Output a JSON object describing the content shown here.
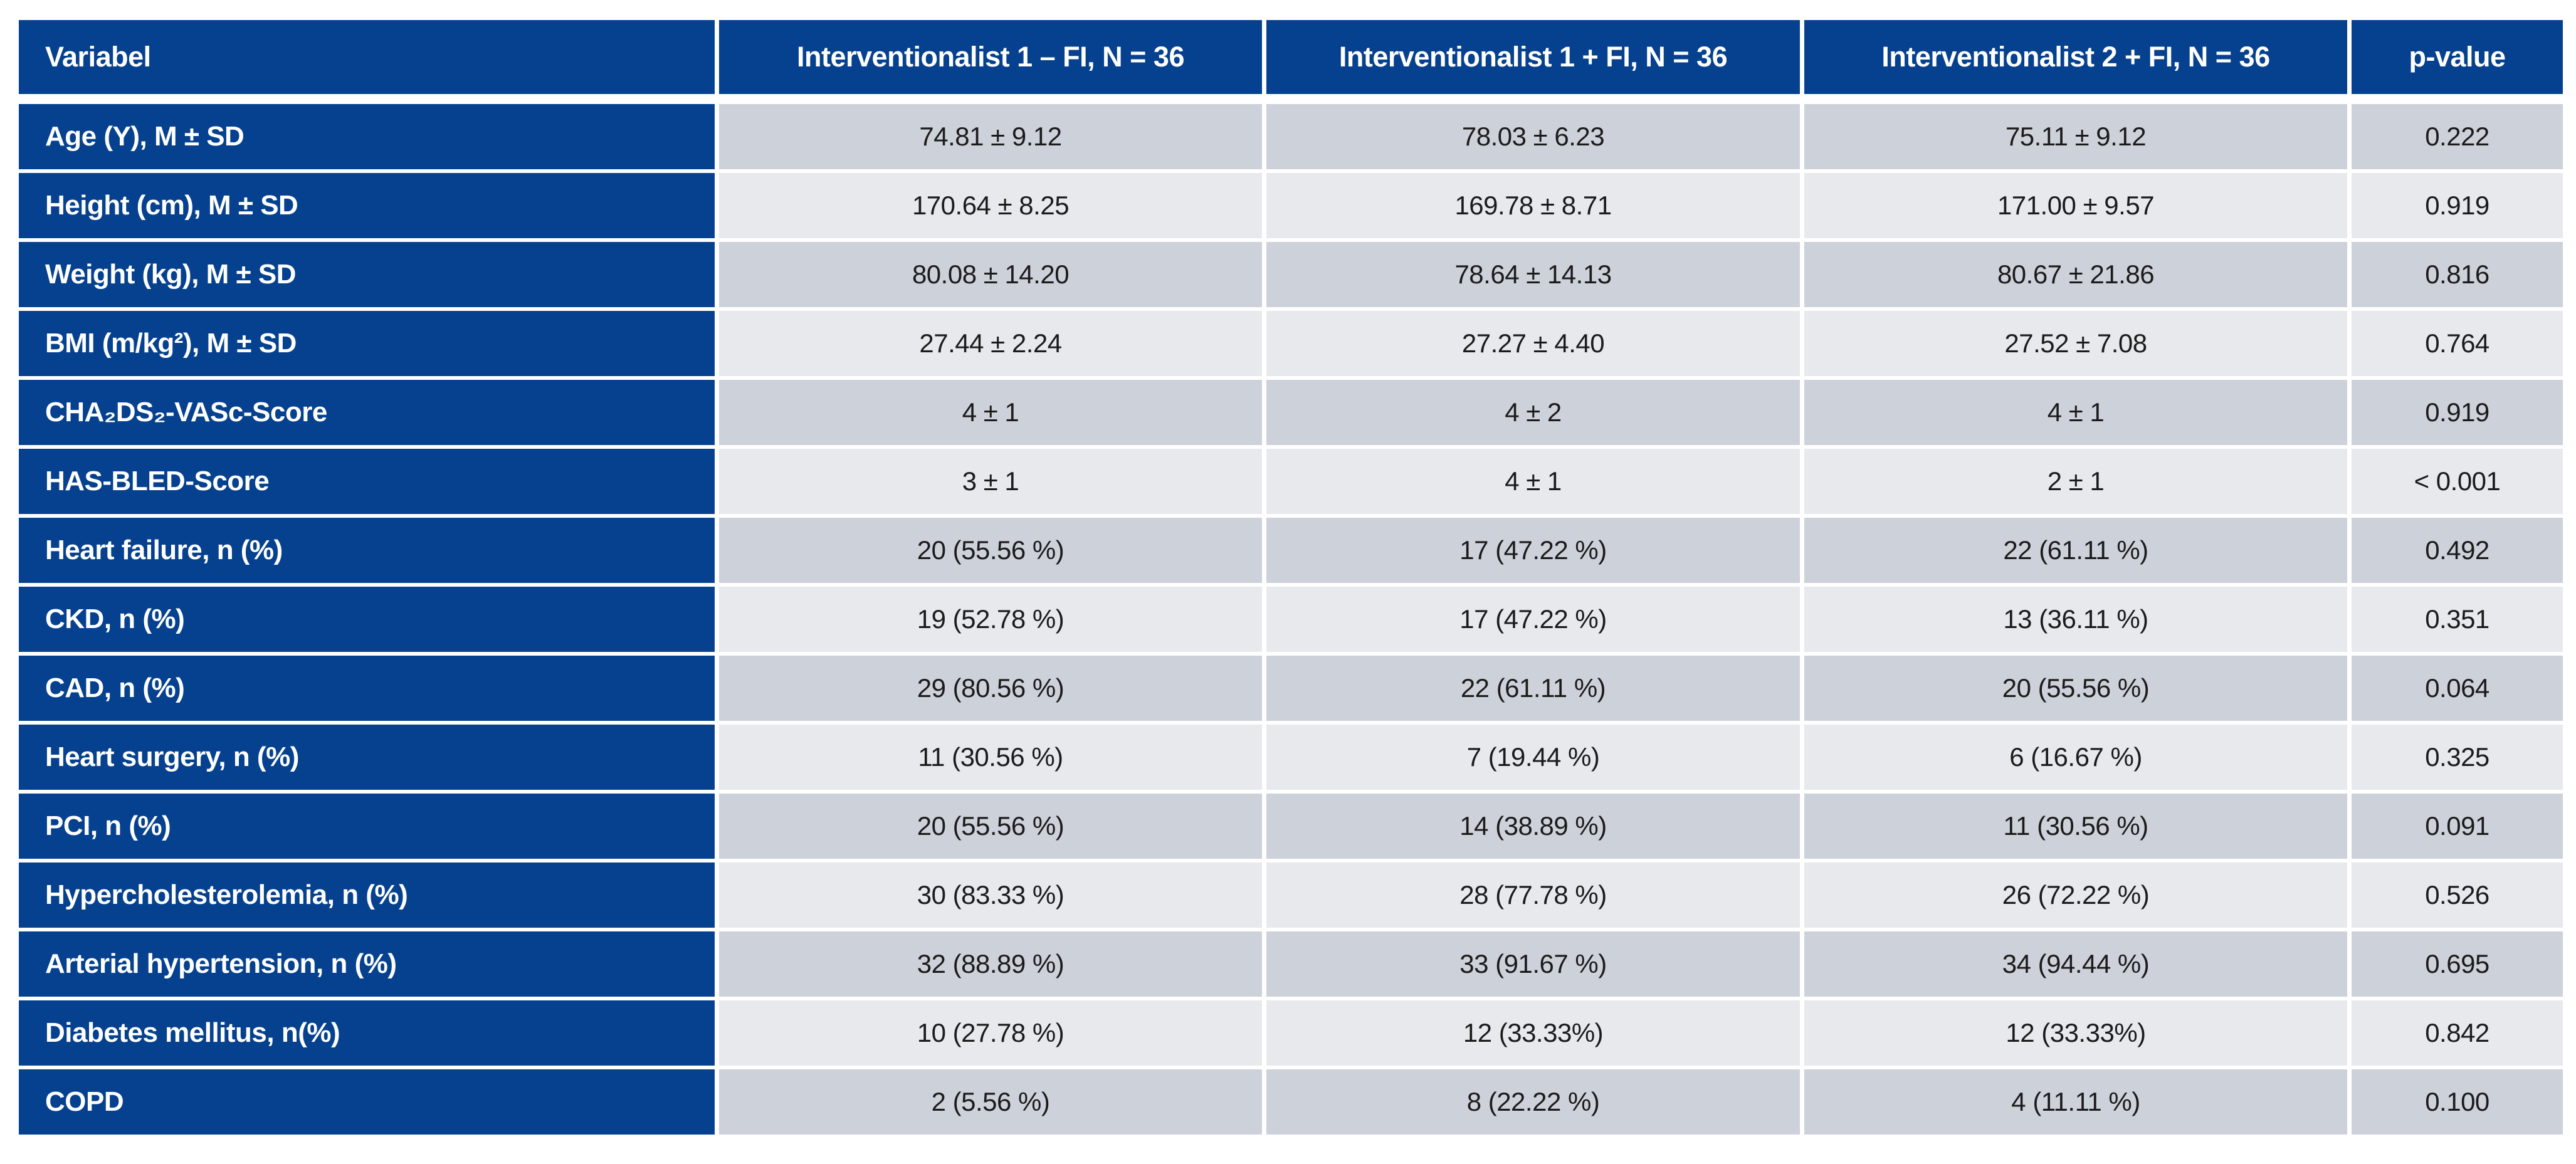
{
  "header": {
    "variabel": "Variabel",
    "col1": "Interventionalist 1 – FI, N = 36",
    "col2": "Interventionalist 1 + FI, N = 36",
    "col3": "Interventionalist 2 + FI, N = 36",
    "pvalue": "p-value"
  },
  "rows": [
    {
      "label": "Age (Y), M ± SD",
      "values": [
        "74.81 ± 9.12",
        "78.03 ± 6.23",
        "75.11 ± 9.12"
      ],
      "p": "0.222"
    },
    {
      "label": "Height (cm), M ± SD",
      "values": [
        "170.64 ± 8.25",
        "169.78 ± 8.71",
        "171.00 ± 9.57"
      ],
      "p": "0.919"
    },
    {
      "label": "Weight (kg), M ± SD",
      "values": [
        "80.08 ± 14.20",
        "78.64 ± 14.13",
        "80.67 ± 21.86"
      ],
      "p": "0.816"
    },
    {
      "label": "BMI (m/kg²), M ± SD",
      "values": [
        "27.44 ± 2.24",
        "27.27 ± 4.40",
        "27.52 ± 7.08"
      ],
      "p": "0.764"
    },
    {
      "label": "CHA₂DS₂-VASc-Score",
      "values": [
        "4 ± 1",
        "4 ± 2",
        "4 ± 1"
      ],
      "p": "0.919"
    },
    {
      "label": "HAS-BLED-Score",
      "values": [
        "3 ± 1",
        "4 ± 1",
        "2 ± 1"
      ],
      "p": "< 0.001"
    },
    {
      "label": "Heart failure, n (%)",
      "values": [
        "20 (55.56 %)",
        "17 (47.22 %)",
        "22 (61.11 %)"
      ],
      "p": "0.492"
    },
    {
      "label": "CKD, n (%)",
      "values": [
        "19 (52.78 %)",
        "17 (47.22 %)",
        "13 (36.11 %)"
      ],
      "p": "0.351"
    },
    {
      "label": "CAD, n (%)",
      "values": [
        "29 (80.56 %)",
        "22 (61.11 %)",
        "20 (55.56 %)"
      ],
      "p": "0.064"
    },
    {
      "label": "Heart surgery, n (%)",
      "values": [
        "11 (30.56 %)",
        "7 (19.44 %)",
        "6 (16.67 %)"
      ],
      "p": "0.325"
    },
    {
      "label": "PCI, n (%)",
      "values": [
        "20 (55.56 %)",
        "14 (38.89 %)",
        "11 (30.56 %)"
      ],
      "p": "0.091"
    },
    {
      "label": "Hypercholesterolemia, n (%)",
      "values": [
        "30 (83.33 %)",
        "28 (77.78 %)",
        "26 (72.22 %)"
      ],
      "p": "0.526"
    },
    {
      "label": "Arterial hypertension, n (%)",
      "values": [
        "32 (88.89 %)",
        "33 (91.67 %)",
        "34 (94.44 %)"
      ],
      "p": "0.695"
    },
    {
      "label": "Diabetes mellitus, n(%)",
      "values": [
        "10 (27.78 %)",
        "12 (33.33%)",
        "12 (33.33%)"
      ],
      "p": "0.842"
    },
    {
      "label": "COPD",
      "values": [
        "2 (5.56 %)",
        "8 (22.22 %)",
        "4 (11.11 %)"
      ],
      "p": "0.100"
    }
  ],
  "colors": {
    "header_blue": "#05418E",
    "row_dark": "#CDD1DA",
    "row_light": "#E8E9ED",
    "text_dark": "#1B1B1B",
    "text_light": "#FFFFFF"
  }
}
